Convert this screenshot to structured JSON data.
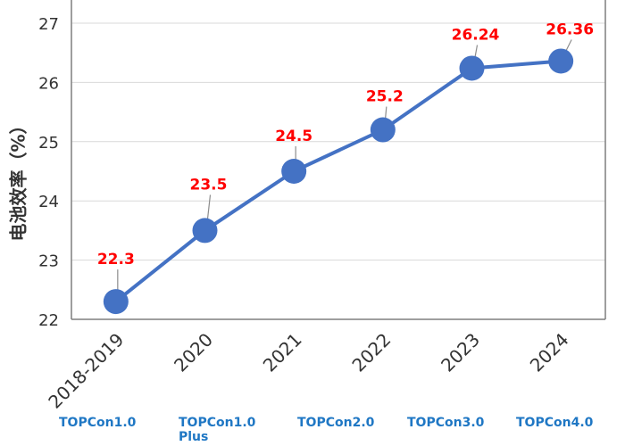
{
  "chart_data": {
    "type": "line",
    "ylabel": "电池效率（%）",
    "categories": [
      "2018-2019",
      "2020",
      "2021",
      "2022",
      "2023",
      "2024"
    ],
    "values": [
      22.3,
      23.5,
      24.5,
      25.2,
      26.24,
      26.36
    ],
    "data_labels": [
      "22.3",
      "23.5",
      "24.5",
      "25.2",
      "26.24",
      "26.36"
    ],
    "yticks": [
      "22",
      "23",
      "24",
      "25",
      "26",
      "27"
    ],
    "ylim": [
      22,
      27.5
    ],
    "grid": true,
    "line_color": "#4472c4",
    "label_color": "#ff0000",
    "generations": [
      {
        "label": "TOPCon1.0",
        "sub": ""
      },
      {
        "label": "TOPCon1.0",
        "sub": "Plus"
      },
      {
        "label": "TOPCon2.0",
        "sub": ""
      },
      {
        "label": "TOPCon3.0",
        "sub": ""
      },
      {
        "label": "TOPCon4.0",
        "sub": ""
      }
    ]
  }
}
